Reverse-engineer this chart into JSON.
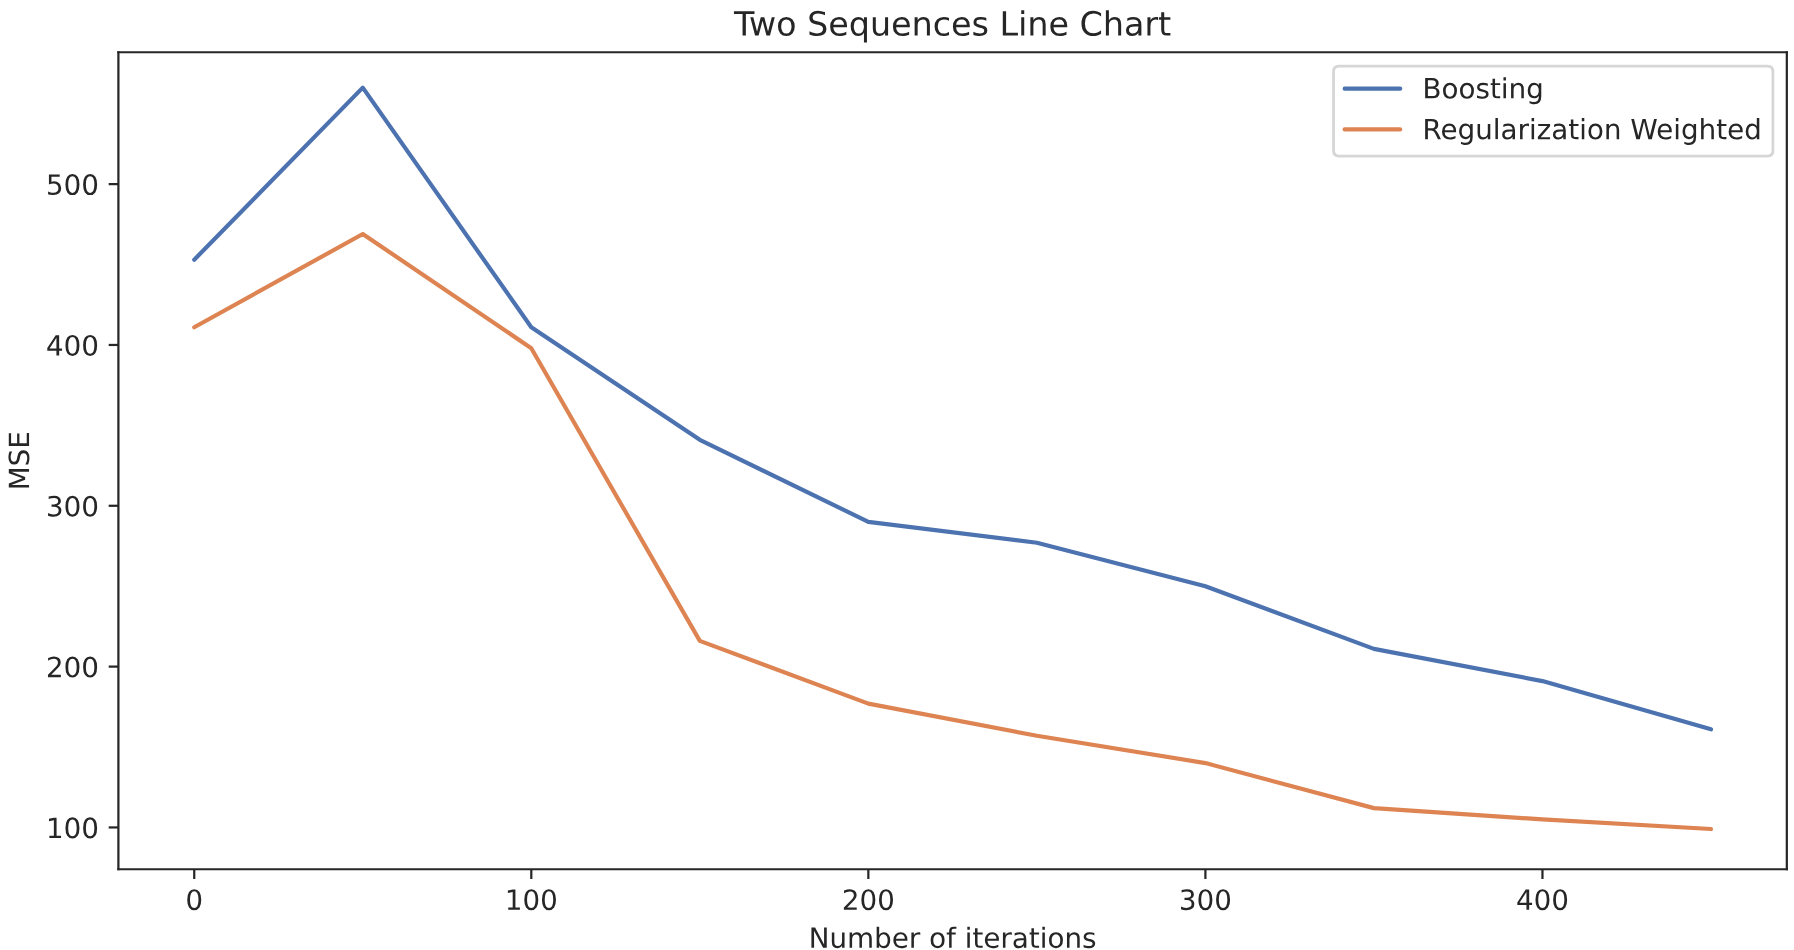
{
  "chart_data": {
    "type": "line",
    "title": "Two Sequences Line Chart",
    "xlabel": "Number of iterations",
    "ylabel": "MSE",
    "x": [
      0,
      50,
      100,
      150,
      200,
      250,
      300,
      350,
      400,
      450
    ],
    "series": [
      {
        "name": "Boosting",
        "color": "#4c72b0",
        "values": [
          453,
          560,
          411,
          341,
          290,
          277,
          250,
          211,
          191,
          161
        ]
      },
      {
        "name": "Regularization Weighted",
        "color": "#dd8452",
        "values": [
          411,
          469,
          398,
          216,
          177,
          157,
          140,
          112,
          105,
          99
        ]
      }
    ],
    "xlim": [
      -22.5,
      472.5
    ],
    "ylim": [
      74,
      582
    ],
    "xticks": [
      0,
      100,
      200,
      300,
      400
    ],
    "yticks": [
      100,
      200,
      300,
      400,
      500
    ],
    "grid": false,
    "legend": "top right",
    "marker": "none",
    "line_style": "solid"
  }
}
